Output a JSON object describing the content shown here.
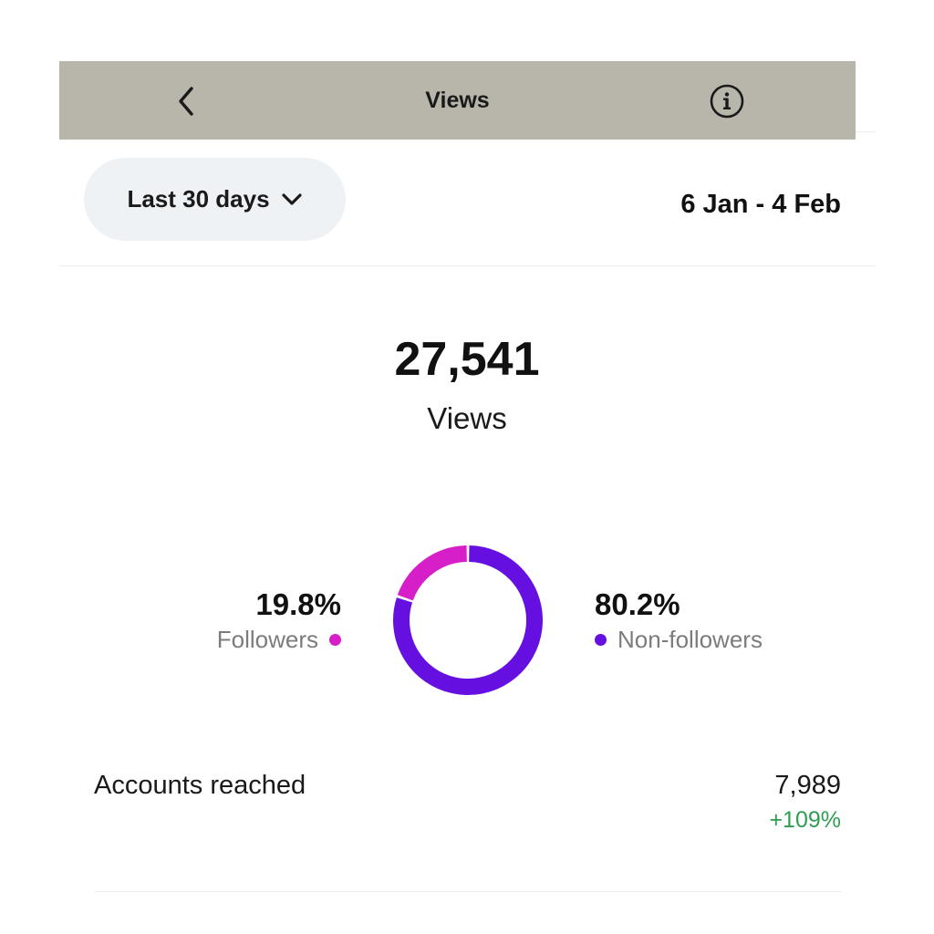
{
  "header": {
    "title": "Views",
    "back_icon": "chevron-left-icon",
    "info_icon": "info-circle-icon",
    "background": "#b8b6aa"
  },
  "filter": {
    "range_label": "Last 30 days",
    "range_icon": "chevron-down-icon",
    "date_range": "6 Jan - 4 Feb"
  },
  "summary": {
    "value": "27,541",
    "label": "Views"
  },
  "breakdown": {
    "followers": {
      "percent_text": "19.8%",
      "label": "Followers",
      "fraction": 0.198,
      "color": "#d61fc9"
    },
    "non_followers": {
      "percent_text": "80.2%",
      "label": "Non-followers",
      "fraction": 0.802,
      "color": "#6510e0"
    }
  },
  "metrics": [
    {
      "label": "Accounts reached",
      "value": "7,989",
      "change": "+109%",
      "change_color": "#2e9e52"
    }
  ]
}
